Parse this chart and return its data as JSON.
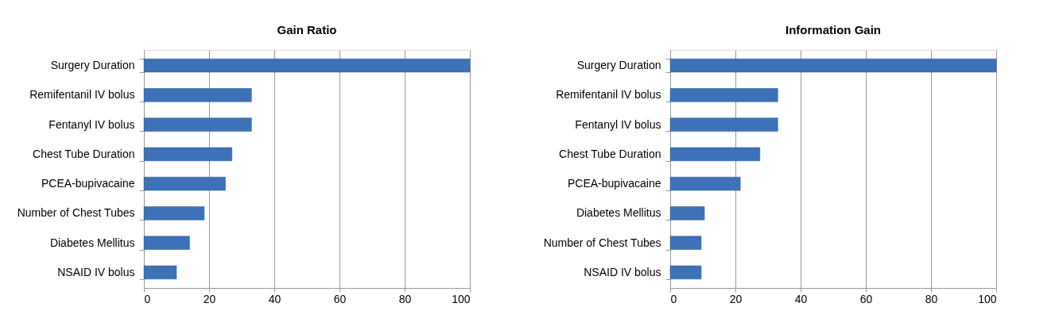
{
  "chart_data": [
    {
      "type": "bar",
      "orientation": "horizontal",
      "title": "Gain Ratio",
      "categories": [
        "Surgery Duration",
        "Remifentanil IV bolus",
        "Fentanyl IV bolus",
        "Chest Tube Duration",
        "PCEA-bupivacaine",
        "Number of Chest Tubes",
        "Diabetes Mellitus",
        "NSAID IV bolus"
      ],
      "values": [
        100,
        33,
        33,
        27,
        25,
        18.5,
        14,
        10
      ],
      "color": "#3d72b8",
      "xlim": [
        0,
        100
      ],
      "xticks": [
        0,
        20,
        40,
        60,
        80,
        100
      ],
      "grid": "x"
    },
    {
      "type": "bar",
      "orientation": "horizontal",
      "title": "Information Gain",
      "categories": [
        "Surgery Duration",
        "Remifentanil IV bolus",
        "Fentanyl IV bolus",
        "Chest Tube Duration",
        "PCEA-bupivacaine",
        "Diabetes Mellitus",
        "Number of Chest Tubes",
        "NSAID IV bolus"
      ],
      "values": [
        100,
        33,
        33,
        27.5,
        21.5,
        10.5,
        9.5,
        9.5
      ],
      "color": "#3d72b8",
      "xlim": [
        0,
        100
      ],
      "xticks": [
        0,
        20,
        40,
        60,
        80,
        100
      ],
      "grid": "x"
    }
  ]
}
